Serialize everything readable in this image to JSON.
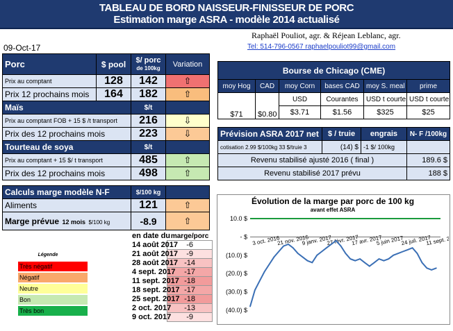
{
  "header": {
    "title_line1": "TABLEAU DE BORD NAISSEUR-FINISSEUR DE PORC",
    "title_line2": "Estimation marge ASRA - modèle 2014 actualisé",
    "authors": "Raphaël Pouliot, agr.    &    Réjean Leblanc, agr.",
    "contact": "Tel:      514-796-0567    raphaelpouliot99@gmail.com",
    "date": "09-Oct-17"
  },
  "porc": {
    "title": "Porc",
    "col_pool": "$ pool",
    "col_porc": "$/ porc",
    "col_porc_sub": "de 100kg",
    "col_variation": "Variation",
    "rows": [
      {
        "label": "Prix au comptant",
        "pool": "128",
        "porc": "142",
        "arrow": "⇧"
      },
      {
        "label": "Prix 12 prochains mois",
        "pool": "164",
        "porc": "182",
        "arrow": "⇧"
      }
    ]
  },
  "mais": {
    "title": "Maïs",
    "unit": "$/t",
    "rows": [
      {
        "label": "Prix au comptant FOB + 15 $ /t transport",
        "value": "216",
        "arrow": "⇩"
      },
      {
        "label": "Prix des 12 prochains mois",
        "value": "223",
        "arrow": "⇩"
      }
    ]
  },
  "soya": {
    "title": "Tourteau de soya",
    "unit": "$/t",
    "rows": [
      {
        "label": "Prix au comptant + 15 $/ t  transport",
        "value": "485",
        "arrow": "⇧"
      },
      {
        "label": "Prix des 12 prochains mois",
        "value": "498",
        "arrow": "⇧"
      }
    ]
  },
  "calculs": {
    "title": "Calculs marge  modèle N-F",
    "unit": "$/100 kg",
    "aliments_label": "Aliments",
    "aliments_value": "121",
    "aliments_arrow": "⇧",
    "marge_label": "Marge prévue",
    "marge_sub": "12 mois",
    "marge_unit": "$/100 kg",
    "marge_value": "-8.9",
    "marge_arrow": "⇧"
  },
  "history": {
    "col_date": "en date du",
    "col_marge": "marge/porc",
    "rows": [
      {
        "date": "14 août 2017",
        "value": "-6"
      },
      {
        "date": "21 août 2017",
        "value": "-9"
      },
      {
        "date": "28 août 2017",
        "value": "-14"
      },
      {
        "date": "4 sept. 2017",
        "value": "-17"
      },
      {
        "date": "11 sept. 2017",
        "value": "-18"
      },
      {
        "date": "18 sept. 2017",
        "value": "-17"
      },
      {
        "date": "25 sept. 2017",
        "value": "-18"
      },
      {
        "date": "2 oct. 2017",
        "value": "-13"
      },
      {
        "date": "9 oct. 2017",
        "value": "-9"
      }
    ]
  },
  "legend": {
    "title": "Légende",
    "items": [
      {
        "label": "Très négatif",
        "color": "#ff0000"
      },
      {
        "label": "Négatif",
        "color": "#f9a86b"
      },
      {
        "label": "Neutre",
        "color": "#ffff99"
      },
      {
        "label": "Bon",
        "color": "#c6e9b2"
      },
      {
        "label": "Très bon",
        "color": "#18b04b"
      }
    ]
  },
  "cme": {
    "title": "Bourse de Chicago (CME)",
    "cols": [
      "moy Hog",
      "CAD",
      "moy Corn",
      "bases CAD",
      "moy S. meal",
      "prime"
    ],
    "units": [
      "",
      "",
      "USD",
      "Courantes",
      "USD t courte",
      "USD t courte"
    ],
    "values": [
      "$71",
      "$0.80",
      "$3.71",
      "$1.56",
      "$325",
      "$25"
    ]
  },
  "asra": {
    "title": "Prévision ASRA 2017 net",
    "col_truie": "$ / truie",
    "col_engrais": "engrais",
    "col_nf": "N- F /100kg",
    "cotisation_label": "cotisation 2.99 $/100kg  33 $/truie 3",
    "cotisation_truie": "(14) $",
    "cotisation_engrais": "-1  $/ 100kg",
    "revenu2016_label": "Revenu stabilisé ajusté 2016 ( final )",
    "revenu2016_value": "189.6 $",
    "revenu2017_label": "Revenu stabilisé 2017 prévu",
    "revenu2017_value": "188 $"
  },
  "chart_data": {
    "type": "line",
    "title": "Évolution de la marge par porc de 100 kg",
    "subtitle": "avant effet ASRA",
    "ylim": [
      -40,
      10
    ],
    "yticks": [
      "10.0 $",
      "- $",
      "(10.0) $",
      "(20.0) $",
      "(30.0) $",
      "(40.0) $"
    ],
    "xticks": [
      "3 oct. 2016",
      "21 nov. 2016",
      "9 janv. 2017",
      "27 févr. 2017",
      "17 avr. 2017",
      "5 juin 2017",
      "24 juil. 2017",
      "11 sept. 2017"
    ],
    "reference_line": 10,
    "reference_color": "#1a9a3c",
    "series_color": "#3a6fb5",
    "series": [
      {
        "values": [
          -38,
          -29,
          -24,
          -19,
          -15,
          -11,
          -8,
          -5,
          -4,
          -6,
          -9,
          -11,
          -13,
          -14,
          -10,
          -8,
          -6,
          -4,
          -2,
          -5,
          -9,
          -12,
          -13,
          -12,
          -14,
          -16,
          -14,
          -12,
          -13,
          -12,
          -10,
          -9,
          -8,
          -7,
          -6,
          -9,
          -14,
          -17,
          -18,
          -17
        ]
      }
    ]
  }
}
